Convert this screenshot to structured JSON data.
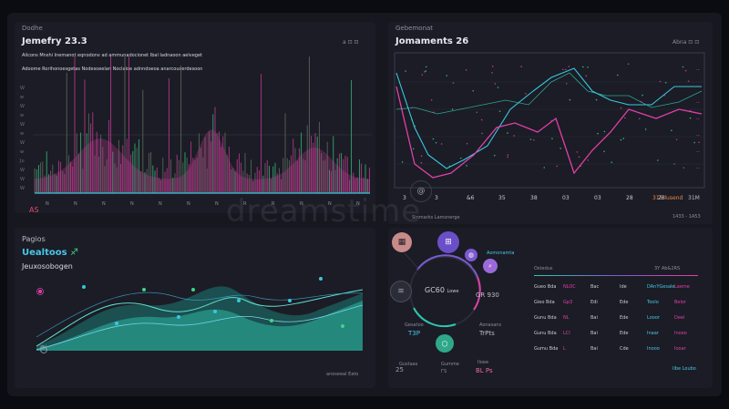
{
  "top_left": {
    "section_label": "Dodhe",
    "title": "Jemefry 23.3",
    "subtitle": "Ailcons Mnshi Inemanot eqnodonv ad ammunadocionet Ibal Iadnaoon aelveget",
    "legend_line": "Adoome Rorihonoesgetas Nodesoeelan Noclaioe adnndoeoa anarcoucerdesoon",
    "controls": "a ⊡ ⊡",
    "corner_label": "AS",
    "y_ticks": [
      "W",
      "w",
      "W",
      "w",
      "W",
      "w",
      "W",
      "w",
      "Ju",
      "W",
      "W",
      "W"
    ],
    "x_ticks": [
      "N",
      "N",
      "N",
      "N",
      "N",
      "N",
      "N",
      "R",
      "R",
      "N",
      "N",
      "N"
    ]
  },
  "top_right": {
    "section_label": "Gebemonat",
    "title": "Jomaments 26",
    "controls": "Abna ⊡ ⊡",
    "x_ticks": [
      "3",
      "3",
      "&6",
      "35",
      "38",
      "03",
      "03",
      "28",
      "28"
    ],
    "right_ticks": [
      "--",
      "--",
      "--",
      "--",
      "--",
      "--",
      "--"
    ],
    "bottom_right_orange": "315 lusend",
    "bottom_right_white": "31M",
    "footer": "1433 - 1A53"
  },
  "bottom_left": {
    "section_label": "Pagios",
    "title": "Uealtoos",
    "title_icon": "♐",
    "subtitle": "Jeuxosobogen",
    "left_label": "Gl",
    "footer": "anoseeal Eato"
  },
  "bottom_right": {
    "header_label": "Sinmarks Lamsnerge",
    "ring_value": "GC60",
    "ring_unit": "Lowe",
    "ring_value2": "GR 930",
    "side_label_1": "Aomonamta",
    "side_label_2": "Aonasans",
    "side_value_2": "TrPts",
    "left_label": "Gesatoo",
    "left_value": "T3P",
    "bottom_label_1": "Gustaas",
    "bottom_value_1": "25",
    "bottom_label_2": "Gumme",
    "bottom_value_2": "ГS",
    "bottom_label_3": "Iloee",
    "bottom_value_3": "BL Ps",
    "icons": [
      "calendar-icon",
      "box-icon",
      "chat-icon",
      "search-icon",
      "layers-icon",
      "cube-icon"
    ]
  },
  "table": {
    "header_left": "Ostedus",
    "header_right": "3Y Ab&2RS",
    "rows": [
      {
        "a": "Gueo Bda",
        "b": "NLOC",
        "c": "Bac",
        "d": "Ide",
        "e": "DAnYGesale",
        "f": "Laeme"
      },
      {
        "a": "Gieo Bda",
        "b": "Gp3",
        "c": "Edi",
        "d": "Ede",
        "e": "Toolo",
        "f": "Belor"
      },
      {
        "a": "Gunu Bda",
        "b": "NL",
        "c": "Bai",
        "d": "Ede",
        "e": "Looor",
        "f": "Deel"
      },
      {
        "a": "Gunu Bda",
        "b": "LCI",
        "c": "Bai",
        "d": "Ede",
        "e": "Inaar",
        "f": "Inoeo"
      },
      {
        "a": "Gumu Bda",
        "b": "L",
        "c": "Bai",
        "d": "Cde",
        "e": "Inooo",
        "f": "Iooar"
      }
    ],
    "footer": "Ilbe Loubo"
  },
  "watermark": "dreamstime",
  "colors": {
    "background": "#0b0c12",
    "panel": "#1b1c25",
    "magenta": "#e040a8",
    "teal": "#2fc7b2",
    "green": "#3fd48a",
    "cyan": "#38c8e0",
    "orange": "#e88a4a",
    "purple": "#7b5ad0"
  }
}
